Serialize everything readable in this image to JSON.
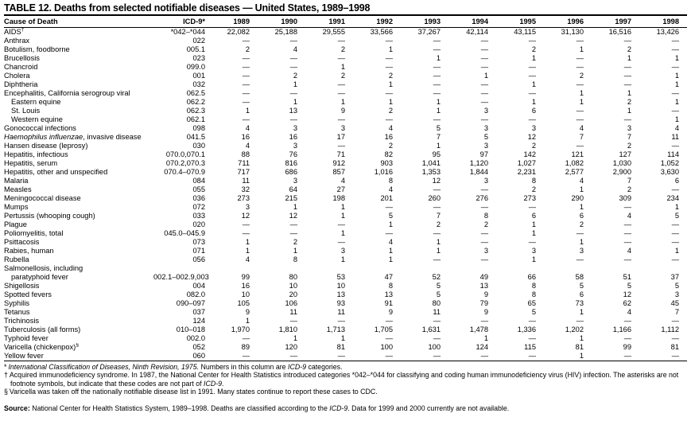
{
  "title": "TABLE 12. Deaths from selected notifiable diseases — United States, 1989–1998",
  "table": {
    "columns": [
      "Cause of Death",
      "ICD-9*",
      "1989",
      "1990",
      "1991",
      "1992",
      "1993",
      "1994",
      "1995",
      "1996",
      "1997",
      "1998"
    ],
    "rows": [
      {
        "cause": "AIDS",
        "marker": "†",
        "icd": "*042–*044",
        "values": [
          "22,082",
          "25,188",
          "29,555",
          "33,566",
          "37,267",
          "42,114",
          "43,115",
          "31,130",
          "16,516",
          "13,426"
        ]
      },
      {
        "cause": "Anthrax",
        "icd": "022",
        "values": [
          "—",
          "—",
          "—",
          "—",
          "—",
          "—",
          "—",
          "—",
          "—",
          "—"
        ]
      },
      {
        "cause": "Botulism, foodborne",
        "icd": "005.1",
        "values": [
          "2",
          "4",
          "2",
          "1",
          "—",
          "—",
          "2",
          "1",
          "2",
          "—"
        ]
      },
      {
        "cause": "Brucellosis",
        "icd": "023",
        "values": [
          "—",
          "—",
          "—",
          "—",
          "1",
          "—",
          "1",
          "—",
          "1",
          "1"
        ]
      },
      {
        "cause": "Chancroid",
        "icd": "099.0",
        "values": [
          "—",
          "—",
          "1",
          "—",
          "—",
          "—",
          "—",
          "—",
          "—",
          "—"
        ]
      },
      {
        "cause": "Cholera",
        "icd": "001",
        "values": [
          "—",
          "2",
          "2",
          "2",
          "—",
          "1",
          "—",
          "2",
          "—",
          "1"
        ]
      },
      {
        "cause": "Diphtheria",
        "icd": "032",
        "values": [
          "—",
          "1",
          "—",
          "1",
          "—",
          "—",
          "1",
          "—",
          "—",
          "1"
        ]
      },
      {
        "cause": "Encephalitis, California serogroup viral",
        "icd": "062.5",
        "values": [
          "—",
          "—",
          "—",
          "—",
          "—",
          "—",
          "—",
          "1",
          "1",
          "—"
        ]
      },
      {
        "cause": "Eastern equine",
        "indent": 1,
        "icd": "062.2",
        "values": [
          "—",
          "1",
          "1",
          "1",
          "1",
          "—",
          "1",
          "1",
          "2",
          "1"
        ]
      },
      {
        "cause": "St. Louis",
        "indent": 1,
        "icd": "062.3",
        "values": [
          "1",
          "13",
          "9",
          "2",
          "1",
          "3",
          "6",
          "—",
          "1",
          "—"
        ]
      },
      {
        "cause": "Western equine",
        "indent": 1,
        "icd": "062.1",
        "values": [
          "—",
          "—",
          "—",
          "—",
          "—",
          "—",
          "—",
          "—",
          "—",
          "1"
        ]
      },
      {
        "cause": "Gonococcal infections",
        "icd": "098",
        "values": [
          "4",
          "3",
          "3",
          "4",
          "5",
          "3",
          "3",
          "4",
          "3",
          "4"
        ]
      },
      {
        "cause_italic": "Haemophilus influenzae",
        "cause": ", invasive disease",
        "icd": "041.5",
        "values": [
          "16",
          "16",
          "17",
          "16",
          "7",
          "5",
          "12",
          "7",
          "7",
          "11"
        ]
      },
      {
        "cause": "Hansen disease (leprosy)",
        "icd": "030",
        "values": [
          "4",
          "3",
          "—",
          "2",
          "1",
          "3",
          "2",
          "—",
          "2",
          "—"
        ]
      },
      {
        "cause": "Hepatitis, infectious",
        "icd": "070.0,070.1",
        "values": [
          "88",
          "76",
          "71",
          "82",
          "95",
          "97",
          "142",
          "121",
          "127",
          "114"
        ]
      },
      {
        "cause": "Hepatitis, serum",
        "icd": "070.2,070.3",
        "values": [
          "711",
          "816",
          "912",
          "903",
          "1,041",
          "1,120",
          "1,027",
          "1,082",
          "1,030",
          "1,052"
        ]
      },
      {
        "cause": "Hepatitis, other and unspecified",
        "icd": "070.4–070.9",
        "values": [
          "717",
          "686",
          "857",
          "1,016",
          "1,353",
          "1,844",
          "2,231",
          "2,577",
          "2,900",
          "3,630"
        ]
      },
      {
        "cause": "Malaria",
        "icd": "084",
        "values": [
          "11",
          "3",
          "4",
          "8",
          "12",
          "3",
          "8",
          "4",
          "7",
          "6"
        ]
      },
      {
        "cause": "Measles",
        "icd": "055",
        "values": [
          "32",
          "64",
          "27",
          "4",
          "—",
          "—",
          "2",
          "1",
          "2",
          "—"
        ]
      },
      {
        "cause": "Meningococcal disease",
        "icd": "036",
        "values": [
          "273",
          "215",
          "198",
          "201",
          "260",
          "276",
          "273",
          "290",
          "309",
          "234"
        ]
      },
      {
        "cause": "Mumps",
        "icd": "072",
        "values": [
          "3",
          "1",
          "1",
          "—",
          "—",
          "—",
          "—",
          "1",
          "—",
          "1"
        ]
      },
      {
        "cause": "Pertussis (whooping cough)",
        "icd": "033",
        "values": [
          "12",
          "12",
          "1",
          "5",
          "7",
          "8",
          "6",
          "6",
          "4",
          "5"
        ]
      },
      {
        "cause": "Plague",
        "icd": "020",
        "values": [
          "—",
          "—",
          "—",
          "1",
          "2",
          "2",
          "1",
          "2",
          "—",
          "—"
        ]
      },
      {
        "cause": "Poliomyelitis, total",
        "icd": "045.0–045.9",
        "values": [
          "—",
          "—",
          "1",
          "—",
          "—",
          "—",
          "1",
          "—",
          "—",
          "—"
        ]
      },
      {
        "cause": "Psittacosis",
        "icd": "073",
        "values": [
          "1",
          "2",
          "—",
          "4",
          "1",
          "—",
          "—",
          "1",
          "—",
          "—"
        ]
      },
      {
        "cause": "Rabies, human",
        "icd": "071",
        "values": [
          "1",
          "1",
          "3",
          "1",
          "1",
          "3",
          "3",
          "3",
          "4",
          "1"
        ]
      },
      {
        "cause": "Rubella",
        "icd": "056",
        "values": [
          "4",
          "8",
          "1",
          "1",
          "—",
          "—",
          "1",
          "—",
          "—",
          "—"
        ]
      },
      {
        "cause": "Salmonellosis, including",
        "icd": "",
        "values": [
          "",
          "",
          "",
          "",
          "",
          "",
          "",
          "",
          "",
          ""
        ]
      },
      {
        "cause": "paratyphoid fever",
        "indent": 1,
        "icd": "002.1–002.9,003",
        "values": [
          "99",
          "80",
          "53",
          "47",
          "52",
          "49",
          "66",
          "58",
          "51",
          "37"
        ]
      },
      {
        "cause": "Shigellosis",
        "icd": "004",
        "values": [
          "16",
          "10",
          "10",
          "8",
          "5",
          "13",
          "8",
          "5",
          "5",
          "5"
        ]
      },
      {
        "cause": "Spotted fevers",
        "icd": "082.0",
        "values": [
          "10",
          "20",
          "13",
          "13",
          "5",
          "9",
          "8",
          "6",
          "12",
          "3"
        ]
      },
      {
        "cause": "Syphilis",
        "icd": "090–097",
        "values": [
          "105",
          "106",
          "93",
          "91",
          "80",
          "79",
          "65",
          "73",
          "62",
          "45"
        ]
      },
      {
        "cause": "Tetanus",
        "icd": "037",
        "values": [
          "9",
          "11",
          "11",
          "9",
          "11",
          "9",
          "5",
          "1",
          "4",
          "7"
        ]
      },
      {
        "cause": "Trichinosis",
        "icd": "124",
        "values": [
          "1",
          "—",
          "—",
          "—",
          "—",
          "—",
          "—",
          "—",
          "—",
          "—"
        ]
      },
      {
        "cause": "Tuberculosis (all forms)",
        "icd": "010–018",
        "values": [
          "1,970",
          "1,810",
          "1,713",
          "1,705",
          "1,631",
          "1,478",
          "1,336",
          "1,202",
          "1,166",
          "1,112"
        ]
      },
      {
        "cause": "Typhoid fever",
        "icd": "002.0",
        "values": [
          "—",
          "1",
          "1",
          "—",
          "—",
          "1",
          "—",
          "1",
          "—",
          "—"
        ]
      },
      {
        "cause": "Varicella (chickenpox)",
        "marker": "§",
        "icd": "052",
        "values": [
          "89",
          "120",
          "81",
          "100",
          "100",
          "124",
          "115",
          "81",
          "99",
          "81"
        ]
      },
      {
        "cause": "Yellow fever",
        "icd": "060",
        "values": [
          "—",
          "—",
          "—",
          "—",
          "—",
          "—",
          "—",
          "1",
          "—",
          "—"
        ]
      }
    ]
  },
  "footnotes": [
    {
      "marker": "*",
      "segments": [
        {
          "text": "International Classification of Diseases, Ninth Revision, 1975.",
          "style": "italic"
        },
        {
          "text": " Numbers in this column are "
        },
        {
          "text": "ICD-9",
          "style": "italic"
        },
        {
          "text": " categories."
        }
      ]
    },
    {
      "marker": "†",
      "segments": [
        {
          "text": "Acquired immunodeficiency syndrome. In 1987, the National Center for Health Statistics introduced categories *042–*044 for classifying and coding human immunodeficiency virus (HIV) infection. The asterisks are not footnote symbols, but indicate that these codes are not part of "
        },
        {
          "text": "ICD-9",
          "style": "italic"
        },
        {
          "text": "."
        }
      ]
    },
    {
      "marker": "§",
      "segments": [
        {
          "text": "Varicella was taken off the nationally notifiable disease list in 1991. Many states continue to report these cases to CDC."
        }
      ]
    }
  ],
  "source": {
    "segments": [
      {
        "text": "Source:",
        "style": "bold"
      },
      {
        "text": " National Center for Health Statistics System, 1989–1998. Deaths are classified according to the "
      },
      {
        "text": "ICD-9",
        "style": "italic"
      },
      {
        "text": ". Data for 1999 and 2000 currently are not available."
      }
    ]
  }
}
